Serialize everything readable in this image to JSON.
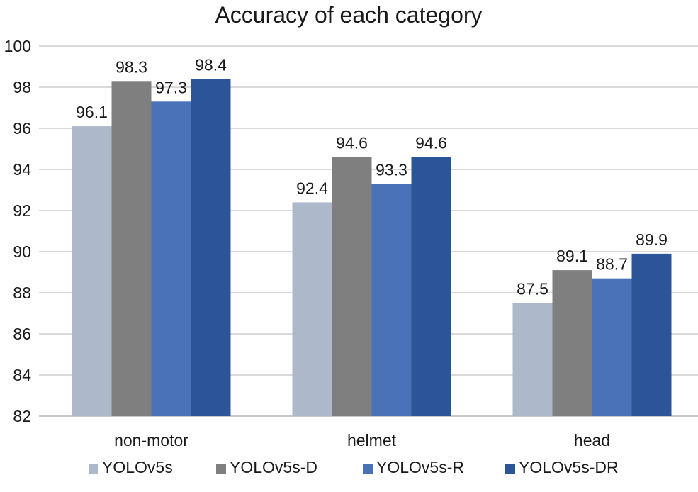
{
  "chart_data": {
    "type": "bar",
    "title": "Accuracy of each category",
    "xlabel": "",
    "ylabel": "",
    "categories": [
      "non-motor",
      "helmet",
      "head"
    ],
    "series": [
      {
        "name": "YOLOv5s",
        "values": [
          96.1,
          92.4,
          87.5
        ],
        "color": "#adb9ca"
      },
      {
        "name": "YOLOv5s-D",
        "values": [
          98.3,
          94.6,
          89.1
        ],
        "color": "#7f7f7f"
      },
      {
        "name": "YOLOv5s-R",
        "values": [
          97.3,
          93.3,
          88.7
        ],
        "color": "#4a72b8"
      },
      {
        "name": "YOLOv5s-DR",
        "values": [
          98.4,
          94.6,
          89.9
        ],
        "color": "#2c5597"
      }
    ],
    "ylim": [
      82,
      100
    ],
    "yticks": [
      82,
      84,
      86,
      88,
      90,
      92,
      94,
      96,
      98,
      100
    ],
    "grid": true,
    "legend": "bottom",
    "data_labels": true
  }
}
